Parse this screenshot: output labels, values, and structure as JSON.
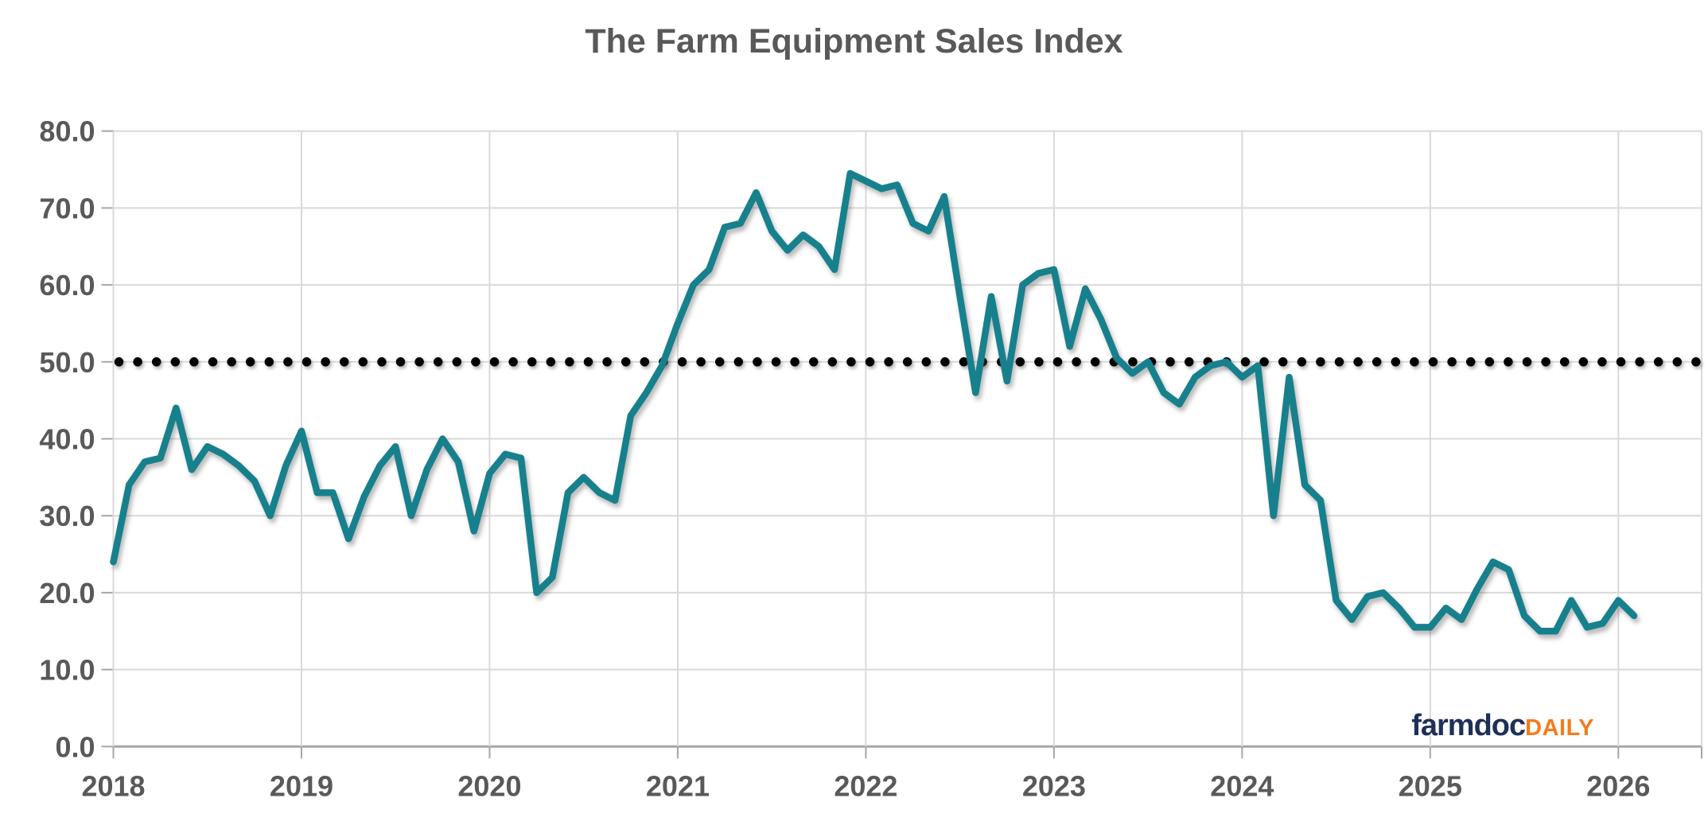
{
  "title": "The Farm Equipment Sales Index",
  "logo": {
    "brand": "farmdoc",
    "suffix": "DAILY"
  },
  "colors": {
    "series_teal": "#17808D",
    "reference_black": "#000000",
    "gridline_gray": "#D9D9D9",
    "axis_gray": "#A6A6A6",
    "label_gray": "#595959",
    "logo_navy": "#1F3058",
    "logo_orange": "#F47B20"
  },
  "chart_data": {
    "type": "line",
    "title": "The Farm Equipment Sales Index",
    "frequency": "monthly",
    "x_start": "2018-01",
    "x_end": "2026-02",
    "xlabel": "",
    "ylabel": "",
    "ylim": [
      0,
      80
    ],
    "y_ticks": [
      0,
      10,
      20,
      30,
      40,
      50,
      60,
      70,
      80
    ],
    "y_tick_label_format": "one_decimal",
    "x_tick_labels": [
      "2018",
      "2019",
      "2020",
      "2021",
      "2022",
      "2023",
      "2024",
      "2025",
      "2026"
    ],
    "grid": true,
    "legend_position": "none",
    "reference_line": {
      "value": 50,
      "style": "round-dotted",
      "color": "#000000"
    },
    "series": [
      {
        "name": "Farm Equipment Sales Index",
        "color": "#17808D",
        "values": [
          24,
          34,
          37,
          37.5,
          44,
          36,
          39,
          38,
          36.5,
          34.5,
          30,
          36.5,
          41,
          33,
          33,
          27,
          32.5,
          36.5,
          39,
          30,
          36,
          40,
          37,
          28,
          35.5,
          38,
          37.5,
          20,
          22,
          33,
          35,
          33,
          32,
          43,
          46,
          49.5,
          55,
          60,
          62,
          67.5,
          68,
          72,
          67,
          64.5,
          66.5,
          65,
          62,
          74.5,
          73.5,
          72.5,
          73,
          68,
          67,
          71.5,
          58.5,
          46,
          58.5,
          47.5,
          60,
          61.5,
          62,
          52,
          59.5,
          55.5,
          50.5,
          48.5,
          50,
          46,
          44.5,
          48,
          49.5,
          50,
          48,
          49.5,
          30,
          48,
          34,
          32,
          19,
          16.5,
          19.5,
          20,
          18,
          15.5,
          15.5,
          18,
          16.5,
          20.5,
          24,
          23,
          17,
          15,
          15,
          19,
          15.5,
          16,
          19,
          17
        ]
      }
    ]
  }
}
